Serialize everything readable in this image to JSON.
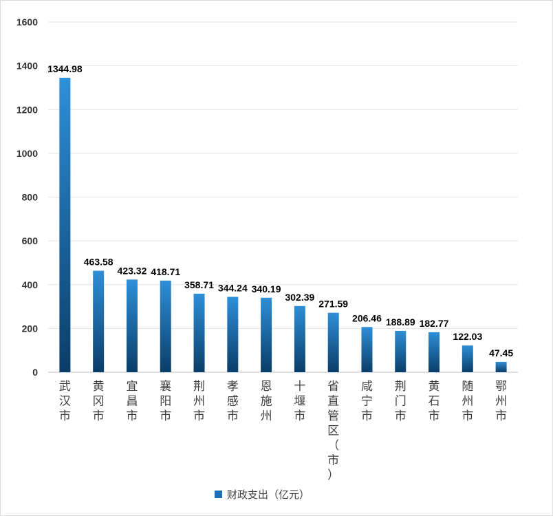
{
  "chart_data": {
    "type": "bar",
    "categories": [
      "武汉市",
      "黄冈市",
      "宜昌市",
      "襄阳市",
      "荆州市",
      "孝感市",
      "恩施州",
      "十堰市",
      "省直管区（市）",
      "咸宁市",
      "荆门市",
      "黄石市",
      "随州市",
      "鄂州市"
    ],
    "series": [
      {
        "name": "财政支出（亿元）",
        "values": [
          1344.98,
          463.58,
          423.32,
          418.71,
          358.71,
          344.24,
          340.19,
          302.39,
          271.59,
          206.46,
          188.89,
          182.77,
          122.03,
          47.45
        ],
        "labels": [
          "1344.98",
          "463.58",
          "423.32",
          "418.71",
          "358.71",
          "344.24",
          "340.19",
          "302.39",
          "271.59",
          "206.46",
          "188.89",
          "182.77",
          "122.03",
          "47.45"
        ]
      }
    ],
    "y_ticks": [
      "0",
      "200",
      "400",
      "600",
      "800",
      "1000",
      "1200",
      "1400",
      "1600"
    ],
    "ylim": [
      0,
      1600
    ],
    "grid": true,
    "legend_position": "bottom",
    "colors": {
      "bar_top": "#2e8fd8",
      "bar_bottom": "#0a3d68",
      "legend_marker": "#1f6fb4"
    }
  }
}
